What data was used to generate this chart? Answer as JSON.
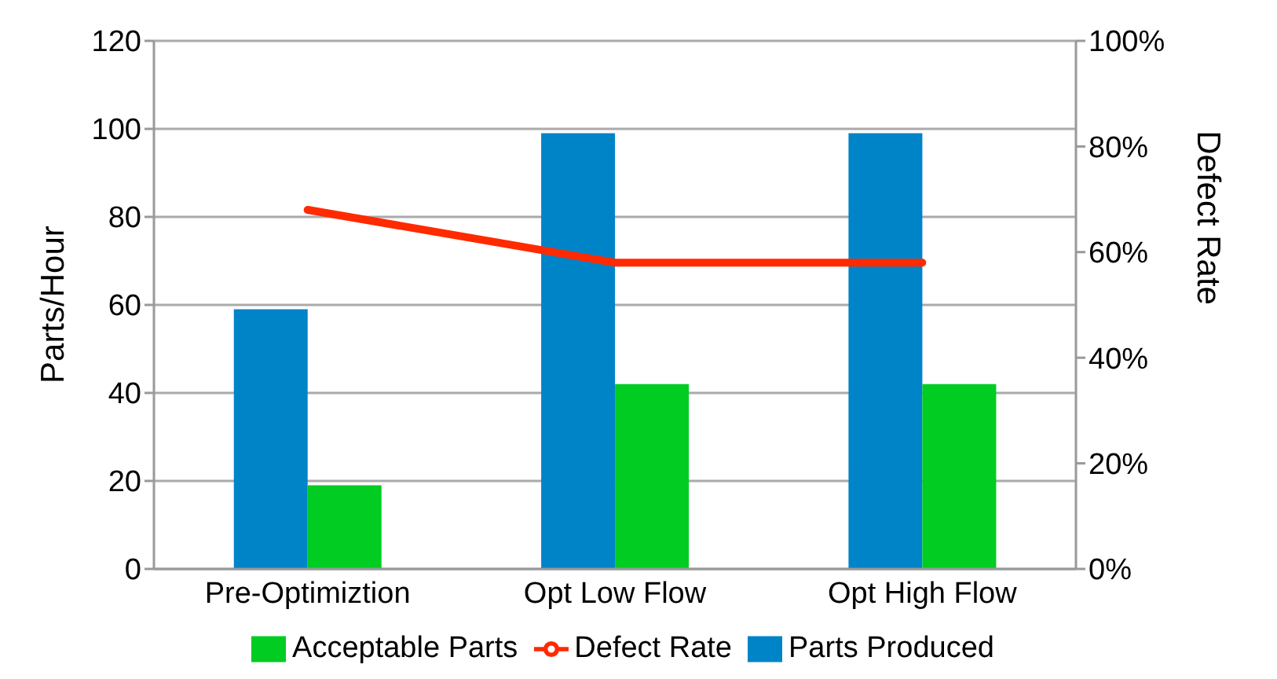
{
  "chart_data": {
    "type": "bar",
    "ylabel": "Parts/Hour",
    "y2label": "Defect Rate",
    "categories": [
      "Pre-Optimiztion",
      "Opt Low Flow",
      "Opt High Flow"
    ],
    "series": [
      {
        "name": "Parts Produced",
        "color": "#0084c8",
        "values": [
          59,
          99,
          99
        ]
      },
      {
        "name": "Acceptable Parts",
        "color": "#00cc22",
        "values": [
          19,
          42,
          42
        ]
      },
      {
        "name": "Defect Rate",
        "type": "line",
        "axis": "y2",
        "color": "#ff2a00",
        "values": [
          68,
          58,
          58
        ]
      }
    ],
    "ylim": [
      0,
      120
    ],
    "yticks": [
      0,
      20,
      40,
      60,
      80,
      100,
      120
    ],
    "y2lim": [
      0,
      100
    ],
    "y2ticks": [
      {
        "value": 0,
        "label": "0%"
      },
      {
        "value": 20,
        "label": "20%"
      },
      {
        "value": 40,
        "label": "40%"
      },
      {
        "value": 60,
        "label": "60%"
      },
      {
        "value": 80,
        "label": "80%"
      },
      {
        "value": 100,
        "label": "100%"
      }
    ],
    "grid": "y",
    "legend": "bottom",
    "marker": "none"
  }
}
